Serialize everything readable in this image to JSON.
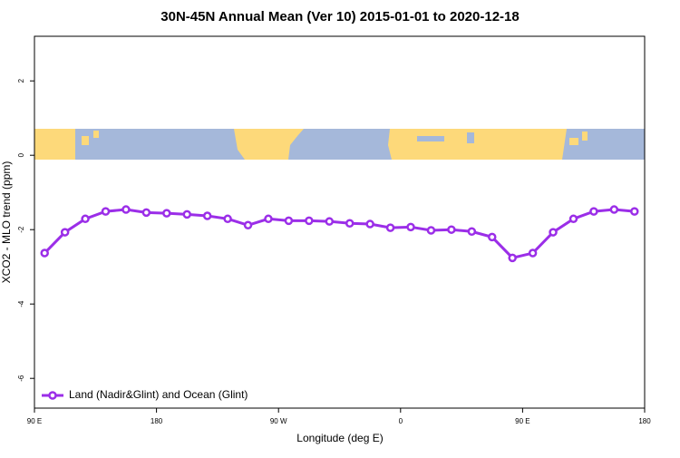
{
  "chart_data": {
    "type": "line",
    "title": "30N-45N Annual Mean (Ver 10)   2015-01-01 to 2020-12-18",
    "x_label": "Longitude (deg E)",
    "y_label": "XCO2 - MLO trend (ppm)",
    "x": [
      97.5,
      112.5,
      127.5,
      142.5,
      157.5,
      172.5,
      187.5,
      202.5,
      217.5,
      232.5,
      247.5,
      262.5,
      277.5,
      292.5,
      307.5,
      322.5,
      337.5,
      352.5,
      367.5,
      382.5,
      397.5,
      412.5,
      427.5,
      442.5,
      457.5,
      472.5,
      487.5,
      502.5,
      517.5,
      532.5
    ],
    "series": [
      {
        "name": "Land (Nadir&Glint) and Ocean (Glint)",
        "color": "#9b2ee8",
        "values": [
          -2.63,
          -2.07,
          -1.71,
          -1.51,
          -1.46,
          -1.54,
          -1.56,
          -1.59,
          -1.63,
          -1.71,
          -1.88,
          -1.71,
          -1.76,
          -1.76,
          -1.78,
          -1.83,
          -1.85,
          -1.95,
          -1.93,
          -2.02,
          -2.0,
          -2.05,
          -2.2,
          -2.76,
          -2.63,
          -2.07,
          -1.71,
          -1.51,
          -1.46,
          -1.51
        ]
      }
    ],
    "xlim": [
      90,
      540
    ],
    "xticks": [
      {
        "value": 90,
        "label": "90 E"
      },
      {
        "value": 180,
        "label": "180"
      },
      {
        "value": 270,
        "label": "90 W"
      },
      {
        "value": 360,
        "label": "0"
      },
      {
        "value": 450,
        "label": "90 E"
      },
      {
        "value": 540,
        "label": "180"
      }
    ],
    "ylim": [
      -6.8,
      3.2
    ],
    "yticks": [
      -6,
      -4,
      -2,
      0,
      2
    ],
    "legend_position": "bottom-left"
  }
}
